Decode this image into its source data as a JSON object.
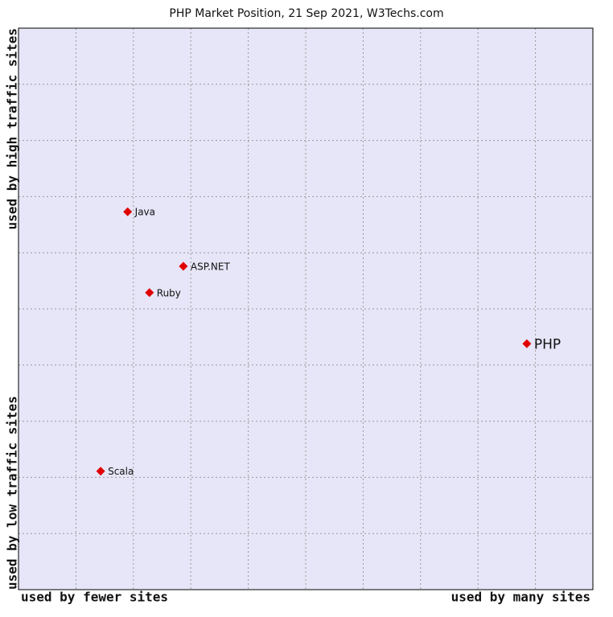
{
  "chart_data": {
    "type": "scatter",
    "title": "PHP Market Position, 21 Sep 2021, W3Techs.com",
    "x_axis_labels": {
      "low": "used by fewer sites",
      "high": "used by many sites"
    },
    "y_axis_labels": {
      "low": "used by low traffic sites",
      "high": "used by high traffic sites"
    },
    "points": [
      {
        "name": "Java",
        "x": 1.9,
        "y": 6.73
      },
      {
        "name": "ASP.NET",
        "x": 2.87,
        "y": 5.76
      },
      {
        "name": "Ruby",
        "x": 2.28,
        "y": 5.29
      },
      {
        "name": "PHP",
        "x": 8.85,
        "y": 4.38
      },
      {
        "name": "Scala",
        "x": 1.43,
        "y": 2.11
      }
    ],
    "highlight": "PHP",
    "color": "#e00000",
    "xlim": [
      0,
      10
    ],
    "ylim": [
      0,
      10
    ],
    "xticks": [
      1,
      2,
      3,
      4,
      5,
      6,
      7,
      8,
      9
    ],
    "yticks": [
      1,
      2,
      3,
      4,
      5,
      6,
      7,
      8,
      9
    ],
    "grid": true
  }
}
